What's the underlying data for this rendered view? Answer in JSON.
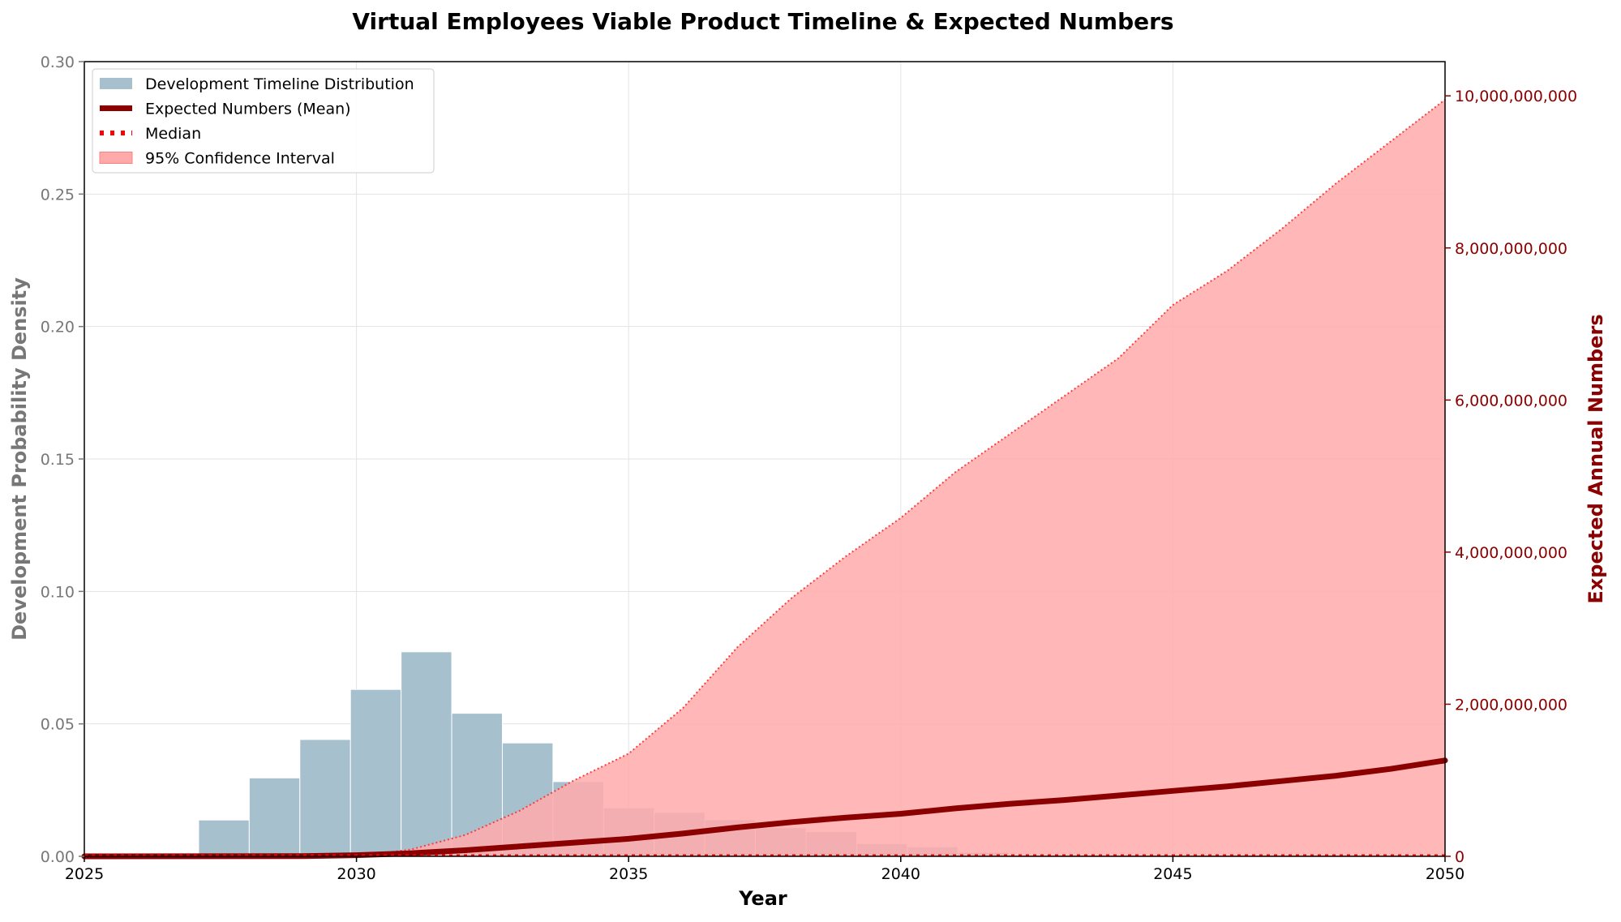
{
  "chart_data": {
    "type": "bar",
    "title": "Virtual Employees Viable Product Timeline & Expected Numbers",
    "xlabel": "Year",
    "ylabel_left": "Development Probability Density",
    "ylabel_right": "Expected Annual Numbers",
    "xlim": [
      2025,
      2050
    ],
    "ylim_left": [
      0,
      0.3
    ],
    "ylim_right": [
      0,
      10450000000
    ],
    "x_ticks": [
      2025,
      2030,
      2035,
      2040,
      2045,
      2050
    ],
    "x_tick_labels": [
      "2025",
      "2030",
      "2035",
      "2040",
      "2045",
      "2050"
    ],
    "y_left_ticks": [
      0,
      0.05,
      0.1,
      0.15,
      0.2,
      0.25,
      0.3
    ],
    "y_left_tick_labels": [
      "0.00",
      "0.05",
      "0.10",
      "0.15",
      "0.20",
      "0.25",
      "0.30"
    ],
    "y_right_ticks": [
      0,
      2000000000,
      4000000000,
      6000000000,
      8000000000,
      10000000000
    ],
    "y_right_tick_labels": [
      "0",
      "2,000,000,000",
      "4,000,000,000",
      "6,000,000,000",
      "8,000,000,000",
      "10,000,000,000"
    ],
    "grid": true,
    "legend_position": "top-left",
    "legend": [
      {
        "label": "Development Timeline Distribution",
        "kind": "patch",
        "color": "#a7c0ce"
      },
      {
        "label": "Expected Numbers (Mean)",
        "kind": "line",
        "color": "#8b0000"
      },
      {
        "label": "Median",
        "kind": "dotted",
        "color": "#ff0000"
      },
      {
        "label": "95% Confidence Interval",
        "kind": "patch",
        "color": "#ffaaaa"
      }
    ],
    "histogram": {
      "name": "Development Timeline Distribution",
      "color": "#a7c0ce",
      "bins": [
        {
          "x0": 2027.1,
          "x1": 2028.03,
          "value": 0.0137
        },
        {
          "x0": 2028.03,
          "x1": 2028.96,
          "value": 0.0296
        },
        {
          "x0": 2028.96,
          "x1": 2029.89,
          "value": 0.0441
        },
        {
          "x0": 2029.89,
          "x1": 2030.82,
          "value": 0.063
        },
        {
          "x0": 2030.82,
          "x1": 2031.75,
          "value": 0.0772
        },
        {
          "x0": 2031.75,
          "x1": 2032.68,
          "value": 0.054
        },
        {
          "x0": 2032.68,
          "x1": 2033.61,
          "value": 0.0428
        },
        {
          "x0": 2033.61,
          "x1": 2034.54,
          "value": 0.0282
        },
        {
          "x0": 2034.54,
          "x1": 2035.47,
          "value": 0.0183
        },
        {
          "x0": 2035.47,
          "x1": 2036.4,
          "value": 0.0166
        },
        {
          "x0": 2036.4,
          "x1": 2037.33,
          "value": 0.0138
        },
        {
          "x0": 2037.33,
          "x1": 2038.26,
          "value": 0.0108
        },
        {
          "x0": 2038.26,
          "x1": 2039.19,
          "value": 0.0093
        },
        {
          "x0": 2039.19,
          "x1": 2040.12,
          "value": 0.0048
        },
        {
          "x0": 2040.12,
          "x1": 2041.05,
          "value": 0.0036
        },
        {
          "x0": 2041.05,
          "x1": 2041.98,
          "value": 0.0015
        }
      ]
    },
    "series": [
      {
        "name": "Expected Numbers (Mean)",
        "color": "#8b0000",
        "x": [
          2025,
          2029,
          2030,
          2031,
          2032,
          2033,
          2034,
          2035,
          2036,
          2037,
          2038,
          2039,
          2040,
          2041,
          2042,
          2043,
          2044,
          2045,
          2046,
          2047,
          2048,
          2049,
          2050
        ],
        "values": [
          0,
          2000000,
          15000000,
          40000000,
          80000000,
          130000000,
          180000000,
          230000000,
          300000000,
          380000000,
          450000000,
          510000000,
          560000000,
          630000000,
          690000000,
          740000000,
          800000000,
          860000000,
          920000000,
          990000000,
          1060000000,
          1150000000,
          1260000000
        ]
      },
      {
        "name": "Median",
        "color": "#ff0000",
        "x": [
          2025,
          2050
        ],
        "values": [
          0,
          0
        ]
      }
    ],
    "confidence_band": {
      "name": "95% Confidence Interval",
      "color": "#ffaaaa",
      "x": [
        2025,
        2030,
        2031,
        2032,
        2033,
        2034,
        2035,
        2036,
        2037,
        2038,
        2039,
        2040,
        2041,
        2042,
        2043,
        2044,
        2045,
        2046,
        2047,
        2048,
        2049,
        2050
      ],
      "lower": [
        0,
        0,
        0,
        0,
        0,
        0,
        0,
        0,
        0,
        0,
        0,
        0,
        0,
        0,
        0,
        0,
        0,
        0,
        0,
        0,
        0,
        0
      ],
      "upper": [
        0,
        0,
        90000000,
        280000000,
        600000000,
        1000000000,
        1350000000,
        1950000000,
        2750000000,
        3400000000,
        3950000000,
        4450000000,
        5050000000,
        5550000000,
        6050000000,
        6550000000,
        7250000000,
        7700000000,
        8250000000,
        8850000000,
        9400000000,
        9950000000
      ]
    }
  }
}
